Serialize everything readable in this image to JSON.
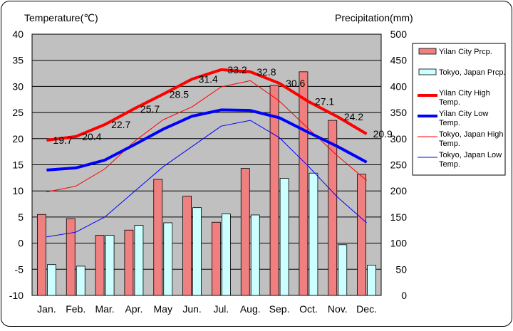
{
  "chart_data": {
    "type": "bar",
    "categories": [
      "Jan.",
      "Feb.",
      "Mar.",
      "Apr.",
      "May",
      "Jun.",
      "Jul.",
      "Aug.",
      "Sep.",
      "Oct.",
      "Nov.",
      "Dec."
    ],
    "left_axis": {
      "label": "Temperature(℃)",
      "ticks": [
        "40",
        "35",
        "30",
        "25",
        "20",
        "15",
        "10",
        "5",
        "0",
        "-5",
        "-10"
      ],
      "ylim": [
        -10,
        40
      ]
    },
    "right_axis": {
      "label": "Precipitation(mm)",
      "ticks": [
        "500",
        "450",
        "400",
        "350",
        "300",
        "250",
        "200",
        "150",
        "100",
        "50",
        "0"
      ],
      "ylim": [
        0,
        500
      ]
    },
    "grid": true,
    "legend_position": "right",
    "series": [
      {
        "name": "Yilan City Prcp.",
        "type": "bar",
        "axis": "right",
        "color": "#f08080",
        "values": [
          155,
          147,
          115,
          125,
          222,
          190,
          140,
          243,
          402,
          428,
          335,
          232
        ]
      },
      {
        "name": "Tokyo, Japan Prcp.",
        "type": "bar",
        "axis": "right",
        "color": "#ccffff",
        "values": [
          59,
          56,
          115,
          134,
          139,
          168,
          156,
          154,
          224,
          234,
          97,
          58
        ]
      },
      {
        "name": "Yilan City High Temp.",
        "type": "line",
        "axis": "left",
        "color": "#ff0000",
        "width": "thick",
        "values": [
          19.7,
          20.4,
          22.7,
          25.7,
          28.5,
          31.4,
          33.2,
          32.8,
          30.6,
          27.1,
          24.2,
          20.9
        ]
      },
      {
        "name": "Yilan City Low Temp.",
        "type": "line",
        "axis": "left",
        "color": "#0000ff",
        "width": "thick",
        "values": [
          14.0,
          14.4,
          15.9,
          18.8,
          21.8,
          24.3,
          25.5,
          25.4,
          24.0,
          21.2,
          18.5,
          15.5
        ]
      },
      {
        "name": "Tokyo, Japan High Temp.",
        "type": "line",
        "axis": "left",
        "color": "#ff0000",
        "width": "thin",
        "values": [
          9.8,
          10.9,
          14.2,
          19.4,
          23.6,
          26.1,
          29.9,
          31.1,
          27.2,
          21.9,
          16.7,
          12.0
        ]
      },
      {
        "name": "Tokyo, Japan Low Temp.",
        "type": "line",
        "axis": "left",
        "color": "#0000ff",
        "width": "thin",
        "values": [
          1.2,
          2.1,
          5.0,
          9.8,
          14.6,
          18.5,
          22.4,
          23.5,
          20.2,
          14.7,
          8.8,
          3.9
        ]
      }
    ],
    "data_labels": [
      "19.7",
      "20.4",
      "22.7",
      "25.7",
      "28.5",
      "31.4",
      "33.2",
      "32.8",
      "30.6",
      "27.1",
      "24.2",
      "20.9"
    ],
    "legend": [
      {
        "label": "Yilan City Prcp.",
        "swatch": "bar",
        "color": "#f08080"
      },
      {
        "label": "Tokyo, Japan Prcp.",
        "swatch": "bar",
        "color": "#ccffff"
      },
      {
        "label": "Yilan City High Temp.",
        "swatch": "line-thick",
        "color": "#ff0000"
      },
      {
        "label": "Yilan City Low Temp.",
        "swatch": "line-thick",
        "color": "#0000ff"
      },
      {
        "label": "Tokyo, Japan High Temp.",
        "swatch": "line-thin",
        "color": "#ff0000"
      },
      {
        "label": "Tokyo, Japan Low Temp.",
        "swatch": "line-thin",
        "color": "#0000ff"
      }
    ]
  }
}
